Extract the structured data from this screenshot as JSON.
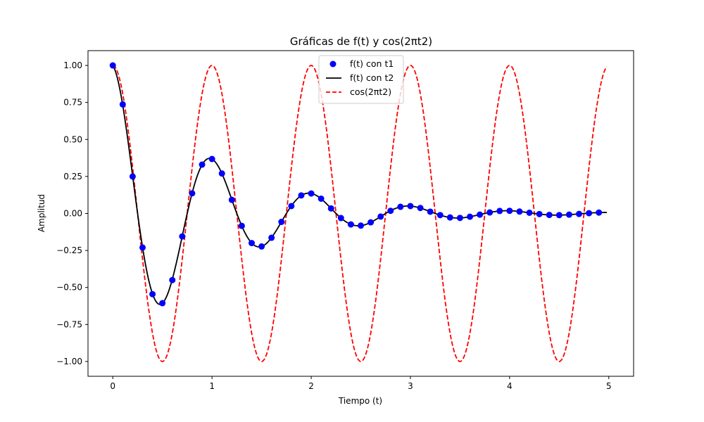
{
  "chart_data": {
    "type": "line",
    "title": "Gráficas de f(t) y cos(2πt2)",
    "xlabel": "Tiempo (t)",
    "ylabel": "Amplitud",
    "xlim": [
      -0.25,
      5.25
    ],
    "ylim": [
      -1.1,
      1.1
    ],
    "xticks": [
      0,
      1,
      2,
      3,
      4,
      5
    ],
    "xtick_labels": [
      "0",
      "1",
      "2",
      "3",
      "4",
      "5"
    ],
    "yticks": [
      1.0,
      0.75,
      0.5,
      0.25,
      0.0,
      -0.25,
      -0.5,
      -0.75,
      -1.0
    ],
    "ytick_labels": [
      "1.00",
      "0.75",
      "0.50",
      "0.25",
      "0.00",
      "−0.25",
      "−0.50",
      "−0.75",
      "−1.00"
    ],
    "grid": false,
    "legend_position": "top-center",
    "series": [
      {
        "name": "f(t) con t1",
        "style": "markers",
        "color": "#0000ff",
        "x": [
          0.0,
          0.1,
          0.2,
          0.3,
          0.4,
          0.5,
          0.6,
          0.7,
          0.8,
          0.9,
          1.0,
          1.1,
          1.2,
          1.3,
          1.4,
          1.5,
          1.6,
          1.7,
          1.8,
          1.9,
          2.0,
          2.1,
          2.2,
          2.3,
          2.4,
          2.5,
          2.6,
          2.7,
          2.8,
          2.9,
          3.0,
          3.1,
          3.2,
          3.3,
          3.4,
          3.5,
          3.6,
          3.7,
          3.8,
          3.9,
          4.0,
          4.1,
          4.2,
          4.3,
          4.4,
          4.5,
          4.6,
          4.7,
          4.8,
          4.9
        ],
        "y": [
          1.0,
          0.737,
          0.25,
          -0.23,
          -0.545,
          -0.606,
          -0.45,
          -0.155,
          0.136,
          0.33,
          0.368,
          0.27,
          0.092,
          -0.084,
          -0.2,
          -0.223,
          -0.164,
          -0.057,
          0.05,
          0.122,
          0.135,
          0.1,
          0.034,
          -0.031,
          -0.074,
          -0.082,
          -0.06,
          -0.021,
          0.018,
          0.045,
          0.05,
          0.037,
          0.012,
          -0.011,
          -0.027,
          -0.03,
          -0.022,
          -0.008,
          0.007,
          0.017,
          0.018,
          0.013,
          0.005,
          -0.004,
          -0.01,
          -0.011,
          -0.008,
          -0.003,
          0.002,
          0.006
        ]
      },
      {
        "name": "f(t) con t2",
        "style": "solid",
        "color": "#000000",
        "function": "exp(-t)*cos(2*pi*t)",
        "x_range": [
          0,
          4.98
        ]
      },
      {
        "name": "cos(2πt2)",
        "style": "dashed",
        "color": "#ff0000",
        "function": "cos(2*pi*t)",
        "x_range": [
          0,
          4.98
        ]
      }
    ]
  }
}
